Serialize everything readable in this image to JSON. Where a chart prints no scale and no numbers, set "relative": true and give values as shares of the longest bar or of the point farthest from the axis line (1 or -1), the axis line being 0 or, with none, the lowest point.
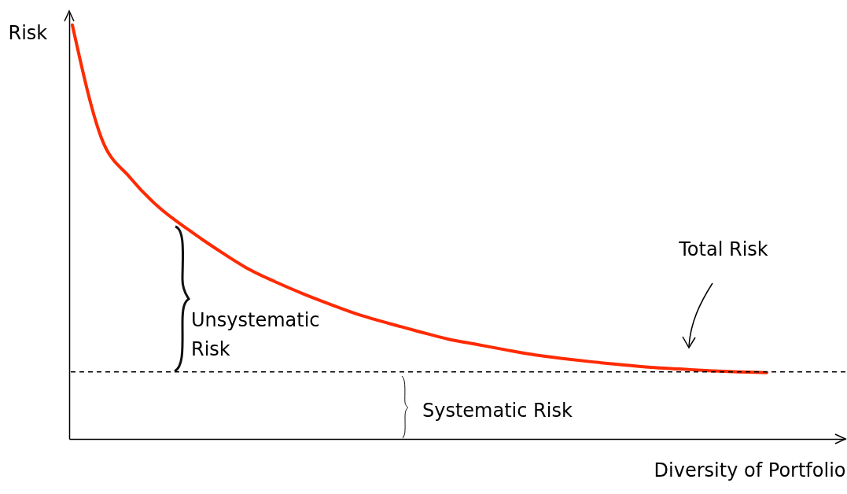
{
  "chart_data": {
    "type": "line",
    "relative": true,
    "xlabel": "Diversity of Portfolio",
    "ylabel": "Risk",
    "grid": false,
    "marker": "none",
    "line_style": "solid",
    "categories": [
      null,
      null,
      null,
      null,
      null,
      null,
      null,
      null,
      null,
      null,
      null,
      null,
      null,
      null,
      null,
      null,
      null,
      null,
      null,
      null,
      null,
      null,
      null,
      null,
      null
    ],
    "series": [
      {
        "color": "#ff2a00",
        "values": [
          1,
          0.728,
          0.631,
          0.559,
          0.506,
          0.458,
          0.414,
          0.38,
          0.35,
          0.323,
          0.298,
          0.278,
          0.259,
          0.241,
          0.228,
          0.215,
          0.203,
          0.194,
          0.186,
          0.179,
          0.173,
          0.169,
          0.165,
          0.162,
          0.16
        ]
      }
    ],
    "ref_lines": [
      {
        "axis": "y",
        "value": 0.162,
        "color": "#000000",
        "line_style": "dashed"
      }
    ],
    "annotations": [
      "Total Risk",
      "Unsystematic Risk",
      "Systematic Risk"
    ]
  }
}
